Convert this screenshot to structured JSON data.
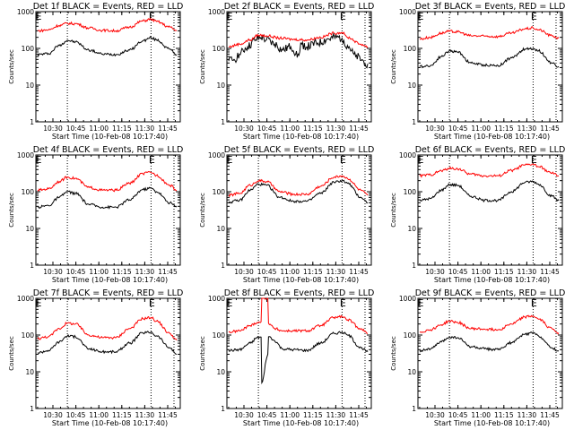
{
  "figure": {
    "layout": "3x3 grid of panels",
    "colors": {
      "events": "#000000",
      "lld": "#ff0000",
      "background": "#ffffff"
    }
  },
  "chart_data": [
    {
      "type": "line",
      "title": "Det 1f BLACK = Events, RED = LLD",
      "xlabel": "Start Time (10-Feb-08 10:17:40)",
      "ylabel": "Counts/sec",
      "yscale": "log",
      "ylim": [
        1,
        1000
      ],
      "yticks": [
        "1",
        "10",
        "100",
        "1000"
      ],
      "xticks": [
        "10:30",
        "10:45",
        "11:00",
        "11:15",
        "11:30",
        "11:45"
      ],
      "xlim_minutes": [
        10.3,
        105
      ],
      "vlines_minutes": [
        34,
        96,
        113
      ],
      "e_markers_minutes": [
        11,
        95
      ],
      "series": [
        {
          "name": "Events",
          "color": "#000000",
          "x_minutes": [
            12,
            20,
            28,
            34,
            40,
            50,
            60,
            70,
            80,
            90,
            96,
            100,
            110,
            115
          ],
          "values": [
            68,
            72,
            120,
            165,
            150,
            90,
            70,
            68,
            90,
            160,
            195,
            170,
            95,
            68
          ]
        },
        {
          "name": "LLD",
          "color": "#ff0000",
          "x_minutes": [
            12,
            20,
            28,
            34,
            40,
            50,
            60,
            70,
            80,
            90,
            96,
            100,
            110,
            115
          ],
          "values": [
            300,
            320,
            420,
            480,
            470,
            360,
            310,
            300,
            380,
            560,
            620,
            540,
            380,
            300
          ]
        }
      ]
    },
    {
      "type": "line",
      "title": "Det 2f BLACK = Events, RED = LLD",
      "xlabel": "Start Time (10-Feb-08 10:17:40)",
      "ylabel": "Counts/sec",
      "yscale": "log",
      "ylim": [
        1,
        1000
      ],
      "yticks": [
        "1",
        "10",
        "100",
        "1000"
      ],
      "xticks": [
        "10:30",
        "10:45",
        "11:00",
        "11:15",
        "11:30",
        "11:45"
      ],
      "xlim_minutes": [
        10.3,
        105
      ],
      "vlines_minutes": [
        34,
        96,
        113
      ],
      "e_markers_minutes": [
        11,
        95
      ],
      "series": [
        {
          "name": "Events",
          "color": "#000000",
          "x_minutes": [
            12,
            16,
            20,
            26,
            32,
            36,
            40,
            46,
            52,
            58,
            64,
            66,
            70,
            78,
            86,
            92,
            96,
            100,
            106,
            112,
            115
          ],
          "values": [
            45,
            50,
            70,
            110,
            170,
            200,
            170,
            130,
            90,
            110,
            65,
            130,
            110,
            140,
            180,
            200,
            190,
            120,
            60,
            45,
            38
          ]
        },
        {
          "name": "LLD",
          "color": "#ff0000",
          "x_minutes": [
            12,
            20,
            28,
            34,
            40,
            50,
            60,
            70,
            80,
            90,
            96,
            100,
            110,
            115
          ],
          "values": [
            110,
            130,
            170,
            230,
            220,
            190,
            175,
            170,
            200,
            260,
            270,
            200,
            130,
            110
          ]
        }
      ]
    },
    {
      "type": "line",
      "title": "Det 3f BLACK = Events, RED = LLD",
      "xlabel": "Start Time (10-Feb-08 10:17:40)",
      "ylabel": "Counts/sec",
      "yscale": "log",
      "ylim": [
        1,
        1000
      ],
      "yticks": [
        "1",
        "10",
        "100",
        "1000"
      ],
      "xticks": [
        "10:30",
        "10:45",
        "11:00",
        "11:15",
        "11:30",
        "11:45"
      ],
      "xlim_minutes": [
        10.3,
        105
      ],
      "vlines_minutes": [
        34,
        96,
        113
      ],
      "e_markers_minutes": [
        11,
        95
      ],
      "series": [
        {
          "name": "Events",
          "color": "#000000",
          "x_minutes": [
            12,
            20,
            28,
            34,
            40,
            50,
            60,
            70,
            80,
            90,
            96,
            100,
            110,
            115
          ],
          "values": [
            32,
            34,
            60,
            85,
            80,
            40,
            35,
            34,
            55,
            95,
            100,
            85,
            40,
            32
          ]
        },
        {
          "name": "LLD",
          "color": "#ff0000",
          "x_minutes": [
            12,
            20,
            28,
            34,
            40,
            50,
            60,
            70,
            80,
            90,
            96,
            100,
            110,
            115
          ],
          "values": [
            180,
            200,
            260,
            290,
            280,
            220,
            215,
            210,
            260,
            340,
            360,
            320,
            220,
            190
          ]
        }
      ]
    },
    {
      "type": "line",
      "title": "Det 4f BLACK = Events, RED = LLD",
      "xlabel": "Start Time (10-Feb-08 10:17:40)",
      "ylabel": "Counts/sec",
      "yscale": "log",
      "ylim": [
        1,
        1000
      ],
      "yticks": [
        "1",
        "10",
        "100",
        "1000"
      ],
      "xticks": [
        "10:30",
        "10:45",
        "11:00",
        "11:15",
        "11:30",
        "11:45"
      ],
      "xlim_minutes": [
        10.3,
        105
      ],
      "vlines_minutes": [
        34,
        96,
        113
      ],
      "e_markers_minutes": [
        11,
        95
      ],
      "series": [
        {
          "name": "Events",
          "color": "#000000",
          "x_minutes": [
            12,
            20,
            28,
            34,
            40,
            50,
            60,
            70,
            80,
            90,
            96,
            100,
            110,
            115
          ],
          "values": [
            38,
            42,
            70,
            100,
            90,
            45,
            38,
            38,
            60,
            115,
            125,
            100,
            50,
            38
          ]
        },
        {
          "name": "LLD",
          "color": "#ff0000",
          "x_minutes": [
            12,
            20,
            28,
            34,
            40,
            50,
            60,
            70,
            80,
            90,
            96,
            100,
            110,
            115
          ],
          "values": [
            110,
            120,
            190,
            250,
            230,
            130,
            110,
            110,
            170,
            310,
            340,
            280,
            150,
            110
          ]
        }
      ]
    },
    {
      "type": "line",
      "title": "Det 5f BLACK = Events, RED = LLD",
      "xlabel": "Start Time (10-Feb-08 10:17:40)",
      "ylabel": "Counts/sec",
      "yscale": "log",
      "ylim": [
        1,
        1000
      ],
      "yticks": [
        "1",
        "10",
        "100",
        "1000"
      ],
      "xticks": [
        "10:30",
        "10:45",
        "11:00",
        "11:15",
        "11:30",
        "11:45"
      ],
      "xlim_minutes": [
        10.3,
        105
      ],
      "vlines_minutes": [
        34,
        96,
        113
      ],
      "e_markers_minutes": [
        11,
        95
      ],
      "series": [
        {
          "name": "Events",
          "color": "#000000",
          "x_minutes": [
            12,
            20,
            28,
            34,
            40,
            50,
            60,
            70,
            80,
            90,
            96,
            100,
            110,
            115
          ],
          "values": [
            52,
            58,
            110,
            160,
            150,
            70,
            55,
            55,
            90,
            180,
            200,
            170,
            70,
            50
          ]
        },
        {
          "name": "LLD",
          "color": "#ff0000",
          "x_minutes": [
            12,
            20,
            28,
            34,
            40,
            50,
            60,
            70,
            80,
            90,
            96,
            100,
            110,
            115
          ],
          "values": [
            80,
            90,
            150,
            200,
            190,
            100,
            85,
            85,
            140,
            250,
            270,
            230,
            110,
            80
          ]
        }
      ]
    },
    {
      "type": "line",
      "title": "Det 6f BLACK = Events, RED = LLD",
      "xlabel": "Start Time (10-Feb-08 10:17:40)",
      "ylabel": "Counts/sec",
      "yscale": "log",
      "ylim": [
        1,
        1000
      ],
      "yticks": [
        "1",
        "10",
        "100",
        "1000"
      ],
      "xticks": [
        "10:30",
        "10:45",
        "11:00",
        "11:15",
        "11:30",
        "11:45"
      ],
      "xlim_minutes": [
        10.3,
        105
      ],
      "vlines_minutes": [
        34,
        96,
        113
      ],
      "e_markers_minutes": [
        11,
        95
      ],
      "series": [
        {
          "name": "Events",
          "color": "#000000",
          "x_minutes": [
            12,
            20,
            28,
            34,
            40,
            50,
            60,
            70,
            80,
            90,
            96,
            100,
            110,
            115
          ],
          "values": [
            58,
            65,
            110,
            155,
            150,
            75,
            58,
            58,
            100,
            180,
            190,
            160,
            75,
            57
          ]
        },
        {
          "name": "LLD",
          "color": "#ff0000",
          "x_minutes": [
            12,
            20,
            28,
            34,
            40,
            50,
            60,
            70,
            80,
            90,
            96,
            100,
            110,
            115
          ],
          "values": [
            270,
            290,
            370,
            430,
            420,
            300,
            270,
            270,
            380,
            530,
            560,
            480,
            320,
            270
          ]
        }
      ]
    },
    {
      "type": "line",
      "title": "Det 7f BLACK = Events, RED = LLD",
      "xlabel": "Start Time (10-Feb-08 10:17:40)",
      "ylabel": "Counts/sec",
      "yscale": "log",
      "ylim": [
        1,
        1000
      ],
      "yticks": [
        "1",
        "10",
        "100",
        "1000"
      ],
      "xticks": [
        "10:30",
        "10:45",
        "11:00",
        "11:15",
        "11:30",
        "11:45"
      ],
      "xlim_minutes": [
        10.3,
        105
      ],
      "vlines_minutes": [
        34,
        96,
        113
      ],
      "e_markers_minutes": [
        11,
        95
      ],
      "series": [
        {
          "name": "Events",
          "color": "#000000",
          "x_minutes": [
            12,
            20,
            28,
            34,
            40,
            50,
            60,
            70,
            80,
            90,
            96,
            100,
            110,
            115
          ],
          "values": [
            33,
            38,
            65,
            95,
            90,
            42,
            35,
            35,
            60,
            115,
            120,
            95,
            45,
            30
          ]
        },
        {
          "name": "LLD",
          "color": "#ff0000",
          "x_minutes": [
            12,
            20,
            28,
            34,
            40,
            50,
            60,
            70,
            80,
            90,
            96,
            100,
            110,
            115
          ],
          "values": [
            80,
            90,
            150,
            210,
            200,
            100,
            85,
            85,
            150,
            280,
            300,
            240,
            110,
            72
          ]
        }
      ]
    },
    {
      "type": "line",
      "title": "Det 8f BLACK = Events, RED = LLD",
      "xlabel": "Start Time (10-Feb-08 10:17:40)",
      "ylabel": "Counts/sec",
      "yscale": "log",
      "ylim": [
        1,
        1000
      ],
      "yticks": [
        "1",
        "10",
        "100",
        "1000"
      ],
      "xticks": [
        "10:30",
        "10:45",
        "11:00",
        "11:15",
        "11:30",
        "11:45"
      ],
      "xlim_minutes": [
        10.3,
        105
      ],
      "vlines_minutes": [
        34,
        96,
        113
      ],
      "e_markers_minutes": [
        11,
        95
      ],
      "annotations": [
        "spike near 10:35-10:42 (LLD > 1000, Events dip to ~5)"
      ],
      "series": [
        {
          "name": "Events",
          "color": "#000000",
          "x_minutes": [
            12,
            20,
            28,
            33,
            36,
            36.5,
            41,
            41.5,
            46,
            52,
            60,
            70,
            80,
            90,
            96,
            100,
            110,
            115
          ],
          "values": [
            38,
            40,
            60,
            85,
            88,
            5,
            30,
            90,
            70,
            42,
            40,
            38,
            60,
            110,
            120,
            100,
            45,
            35
          ]
        },
        {
          "name": "LLD",
          "color": "#ff0000",
          "x_minutes": [
            12,
            20,
            28,
            33,
            36,
            36.5,
            41,
            41.5,
            46,
            52,
            60,
            70,
            80,
            90,
            96,
            100,
            110,
            115
          ],
          "values": [
            120,
            130,
            180,
            220,
            230,
            1000,
            1000,
            210,
            150,
            130,
            130,
            130,
            180,
            300,
            320,
            260,
            150,
            110
          ]
        }
      ]
    },
    {
      "type": "line",
      "title": "Det 9f BLACK = Events, RED = LLD",
      "xlabel": "Start Time (10-Feb-08 10:17:40)",
      "ylabel": "Counts/sec",
      "yscale": "log",
      "ylim": [
        1,
        1000
      ],
      "yticks": [
        "1",
        "10",
        "100",
        "1000"
      ],
      "xticks": [
        "10:30",
        "10:45",
        "11:00",
        "11:15",
        "11:30",
        "11:45"
      ],
      "xlim_minutes": [
        10.3,
        105
      ],
      "vlines_minutes": [
        34,
        96,
        113
      ],
      "e_markers_minutes": [
        11,
        95
      ],
      "series": [
        {
          "name": "Events",
          "color": "#000000",
          "x_minutes": [
            12,
            20,
            28,
            34,
            40,
            50,
            60,
            70,
            80,
            90,
            96,
            100,
            110,
            115
          ],
          "values": [
            38,
            42,
            65,
            88,
            85,
            48,
            42,
            40,
            62,
            105,
            115,
            95,
            45,
            37
          ]
        },
        {
          "name": "LLD",
          "color": "#ff0000",
          "x_minutes": [
            12,
            20,
            28,
            34,
            40,
            50,
            60,
            70,
            80,
            90,
            96,
            100,
            110,
            115
          ],
          "values": [
            120,
            140,
            190,
            240,
            220,
            150,
            145,
            140,
            200,
            310,
            330,
            270,
            150,
            115
          ]
        }
      ]
    }
  ]
}
